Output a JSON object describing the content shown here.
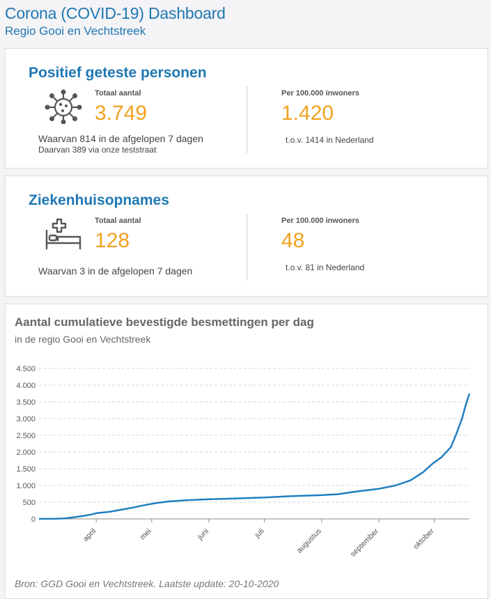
{
  "header": {
    "title": "Corona (COVID-19) Dashboard",
    "subtitle": "Regio Gooi en Vechtstreek"
  },
  "positief": {
    "title": "Positief geteste personen",
    "icon": "virus-icon",
    "total_label": "Totaal aantal",
    "total_value": "3.749",
    "note1": "Waarvan 814 in de afgelopen 7 dagen",
    "note2": "Daarvan 389 via onze teststraat",
    "per100k_label": "Per 100.000 inwoners",
    "per100k_value": "1.420",
    "per100k_note": "t.o.v. 1414 in Nederland"
  },
  "ziekenhuis": {
    "title": "Ziekenhuisopnames",
    "icon": "hospital-bed-icon",
    "total_label": "Totaal aantal",
    "total_value": "128",
    "note1": "Waarvan 3 in de afgelopen 7 dagen",
    "per100k_label": "Per 100.000 inwoners",
    "per100k_value": "48",
    "per100k_note": "t.o.v. 81 in Nederland"
  },
  "colors": {
    "accent_blue": "#1f78b4",
    "value_orange": "#f0a21f",
    "line": "#1f7fc0"
  },
  "chart": {
    "title": "Aantal cumulatieve bevestigde besmettingen per dag",
    "subtitle": "in de regio Gooi en Vechtstreek",
    "source": "Bron: GGD Gooi en Vechtstreek. Laatste update: 20-10-2020"
  },
  "chart_data": {
    "type": "line",
    "title": "Aantal cumulatieve bevestigde besmettingen per dag",
    "subtitle": "in de regio Gooi en Vechtstreek",
    "x_start": "2020-03-01",
    "x_end": "2020-10-20",
    "ylim": [
      0,
      4500
    ],
    "yticks": [
      0,
      500,
      1000,
      1500,
      2000,
      2500,
      3000,
      3500,
      4000,
      4500
    ],
    "ytick_labels": [
      "0",
      "500",
      "1.000",
      "1.500",
      "2.000",
      "2.500",
      "3.000",
      "3.500",
      "4.000",
      "4.500"
    ],
    "xticks": [
      {
        "date": "2020-04-01",
        "label": "april"
      },
      {
        "date": "2020-05-01",
        "label": "mei"
      },
      {
        "date": "2020-06-01",
        "label": "juni"
      },
      {
        "date": "2020-07-01",
        "label": "juli"
      },
      {
        "date": "2020-08-01",
        "label": "augustus"
      },
      {
        "date": "2020-09-01",
        "label": "september"
      },
      {
        "date": "2020-10-01",
        "label": "oktober"
      }
    ],
    "grid": true,
    "series": [
      {
        "points": [
          [
            "2020-03-01",
            0
          ],
          [
            "2020-03-10",
            5
          ],
          [
            "2020-03-15",
            15
          ],
          [
            "2020-03-20",
            50
          ],
          [
            "2020-03-25",
            90
          ],
          [
            "2020-03-29",
            130
          ],
          [
            "2020-04-01",
            170
          ],
          [
            "2020-04-08",
            210
          ],
          [
            "2020-04-14",
            270
          ],
          [
            "2020-04-20",
            330
          ],
          [
            "2020-04-27",
            410
          ],
          [
            "2020-05-03",
            470
          ],
          [
            "2020-05-10",
            520
          ],
          [
            "2020-05-20",
            560
          ],
          [
            "2020-06-01",
            590
          ],
          [
            "2020-06-15",
            610
          ],
          [
            "2020-07-01",
            640
          ],
          [
            "2020-07-15",
            680
          ],
          [
            "2020-08-01",
            710
          ],
          [
            "2020-08-10",
            740
          ],
          [
            "2020-08-20",
            820
          ],
          [
            "2020-09-01",
            900
          ],
          [
            "2020-09-10",
            1000
          ],
          [
            "2020-09-18",
            1150
          ],
          [
            "2020-09-25",
            1400
          ],
          [
            "2020-09-30",
            1650
          ],
          [
            "2020-10-05",
            1850
          ],
          [
            "2020-10-10",
            2150
          ],
          [
            "2020-10-13",
            2550
          ],
          [
            "2020-10-16",
            3000
          ],
          [
            "2020-10-18",
            3400
          ],
          [
            "2020-10-20",
            3749
          ]
        ]
      }
    ]
  }
}
